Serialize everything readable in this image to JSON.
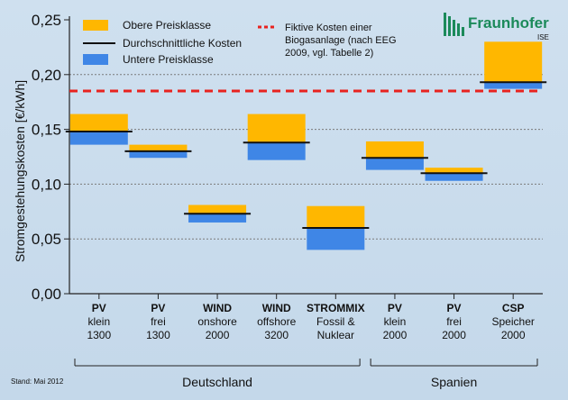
{
  "logo": {
    "name": "Fraunhofer",
    "sub": "ISE",
    "color": "#1b8a5a"
  },
  "footnote": "Stand: Mai 2012",
  "chart_data": {
    "type": "bar",
    "ylabel": "Stromgestehungskosten [€/kWh]",
    "ylim": [
      0,
      0.25
    ],
    "yticks": [
      "0,00",
      "0,05",
      "0,10",
      "0,15",
      "0,20",
      "0,25"
    ],
    "grid": true,
    "legend": {
      "placement": "top-left",
      "upper": "Obere Preisklasse",
      "avg": "Durchschnittliche Kosten",
      "lower": "Untere Preisklasse",
      "ref_lines": [
        "Fiktive Kosten einer",
        "Biogasanlage (nach EEG",
        "2009, vgl. Tabelle 2)"
      ]
    },
    "colors": {
      "upper": "#ffb700",
      "lower": "#3f86e6",
      "avg": "#111111",
      "ref": "#e8231f"
    },
    "reference_value": 0.185,
    "categories": [
      {
        "t1": "PV",
        "t2": "klein",
        "t3": "1300",
        "min": 0.136,
        "avg": 0.148,
        "max": 0.164
      },
      {
        "t1": "PV",
        "t2": "frei",
        "t3": "1300",
        "min": 0.124,
        "avg": 0.13,
        "max": 0.136
      },
      {
        "t1": "WIND",
        "t2": "onshore",
        "t3": "2000",
        "min": 0.065,
        "avg": 0.073,
        "max": 0.081
      },
      {
        "t1": "WIND",
        "t2": "offshore",
        "t3": "3200",
        "min": 0.122,
        "avg": 0.138,
        "max": 0.164
      },
      {
        "t1": "STROMMIX",
        "t2": "Fossil &",
        "t3": "Nuklear",
        "min": 0.04,
        "avg": 0.06,
        "max": 0.08
      },
      {
        "t1": "PV",
        "t2": "klein",
        "t3": "2000",
        "min": 0.113,
        "avg": 0.124,
        "max": 0.139
      },
      {
        "t1": "PV",
        "t2": "frei",
        "t3": "2000",
        "min": 0.103,
        "avg": 0.11,
        "max": 0.115
      },
      {
        "t1": "CSP",
        "t2": "Speicher",
        "t3": "2000",
        "min": 0.187,
        "avg": 0.193,
        "max": 0.23
      }
    ],
    "groups": [
      {
        "label": "Deutschland",
        "from": 0,
        "to": 4
      },
      {
        "label": "Spanien",
        "from": 5,
        "to": 7
      }
    ]
  }
}
